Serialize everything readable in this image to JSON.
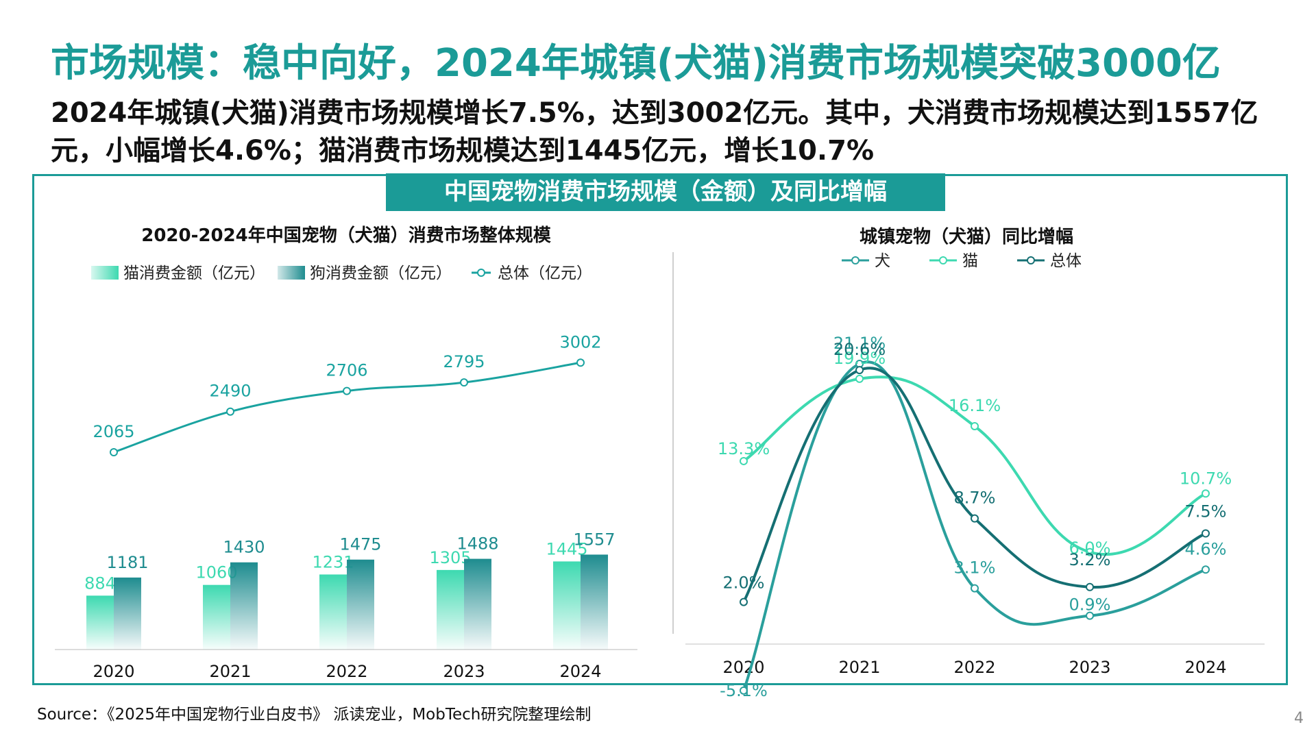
{
  "headline": "市场规模：稳中向好，2024年城镇(犬猫)消费市场规模突破3000亿",
  "subtitle": "2024年城镇(犬猫)消费市场规模增长7.5%，达到3002亿元。其中，犬消费市场规模达到1557亿元，小幅增长4.6%；猫消费市场规模达到1445亿元，增长10.7%",
  "panel_title": "中国宠物消费市场规模（金额）及同比增幅",
  "source": "Source：《2025年中国宠物行业白皮书》 派读宠业，MobTech研究院整理绘制",
  "page_number": "4",
  "colors": {
    "brand": "#1b9b97",
    "cat": "#3dd9b0",
    "dog": "#1e8c8f",
    "total_line": "#1aa3a0",
    "yoy_dog": "#2a9f9c",
    "yoy_cat": "#3dd9b0",
    "yoy_total": "#156f73"
  },
  "chart_data": [
    {
      "type": "bar",
      "title": "2020-2024年中国宠物（犬猫）消费市场整体规模",
      "categories": [
        "2020",
        "2021",
        "2022",
        "2023",
        "2024"
      ],
      "series": [
        {
          "name": "猫消费金额（亿元）",
          "kind": "bar",
          "values": [
            884,
            1060,
            1231,
            1305,
            1445
          ]
        },
        {
          "name": "狗消费金额（亿元）",
          "kind": "bar",
          "values": [
            1181,
            1430,
            1475,
            1488,
            1557
          ]
        },
        {
          "name": "总体（亿元）",
          "kind": "line",
          "values": [
            2065,
            2490,
            2706,
            2795,
            3002
          ]
        }
      ],
      "legend": "top"
    },
    {
      "type": "line",
      "title": "城镇宠物（犬猫）同比增幅",
      "categories": [
        "2020",
        "2021",
        "2022",
        "2023",
        "2024"
      ],
      "series": [
        {
          "name": "犬",
          "values": [
            -5.1,
            21.1,
            3.1,
            0.9,
            4.6
          ],
          "labels": [
            "-5.1%",
            "21.1%",
            "3.1%",
            "0.9%",
            "4.6%"
          ]
        },
        {
          "name": "猫",
          "values": [
            13.3,
            19.9,
            16.1,
            6.0,
            10.7
          ],
          "labels": [
            "13.3%",
            "19.9%",
            "16.1%",
            "6.0%",
            "10.7%"
          ]
        },
        {
          "name": "总体",
          "values": [
            2.0,
            20.6,
            8.7,
            3.2,
            7.5
          ],
          "labels": [
            "2.0%",
            "20.6%",
            "8.7%",
            "3.2%",
            "7.5%"
          ]
        }
      ],
      "legend": "top"
    }
  ]
}
